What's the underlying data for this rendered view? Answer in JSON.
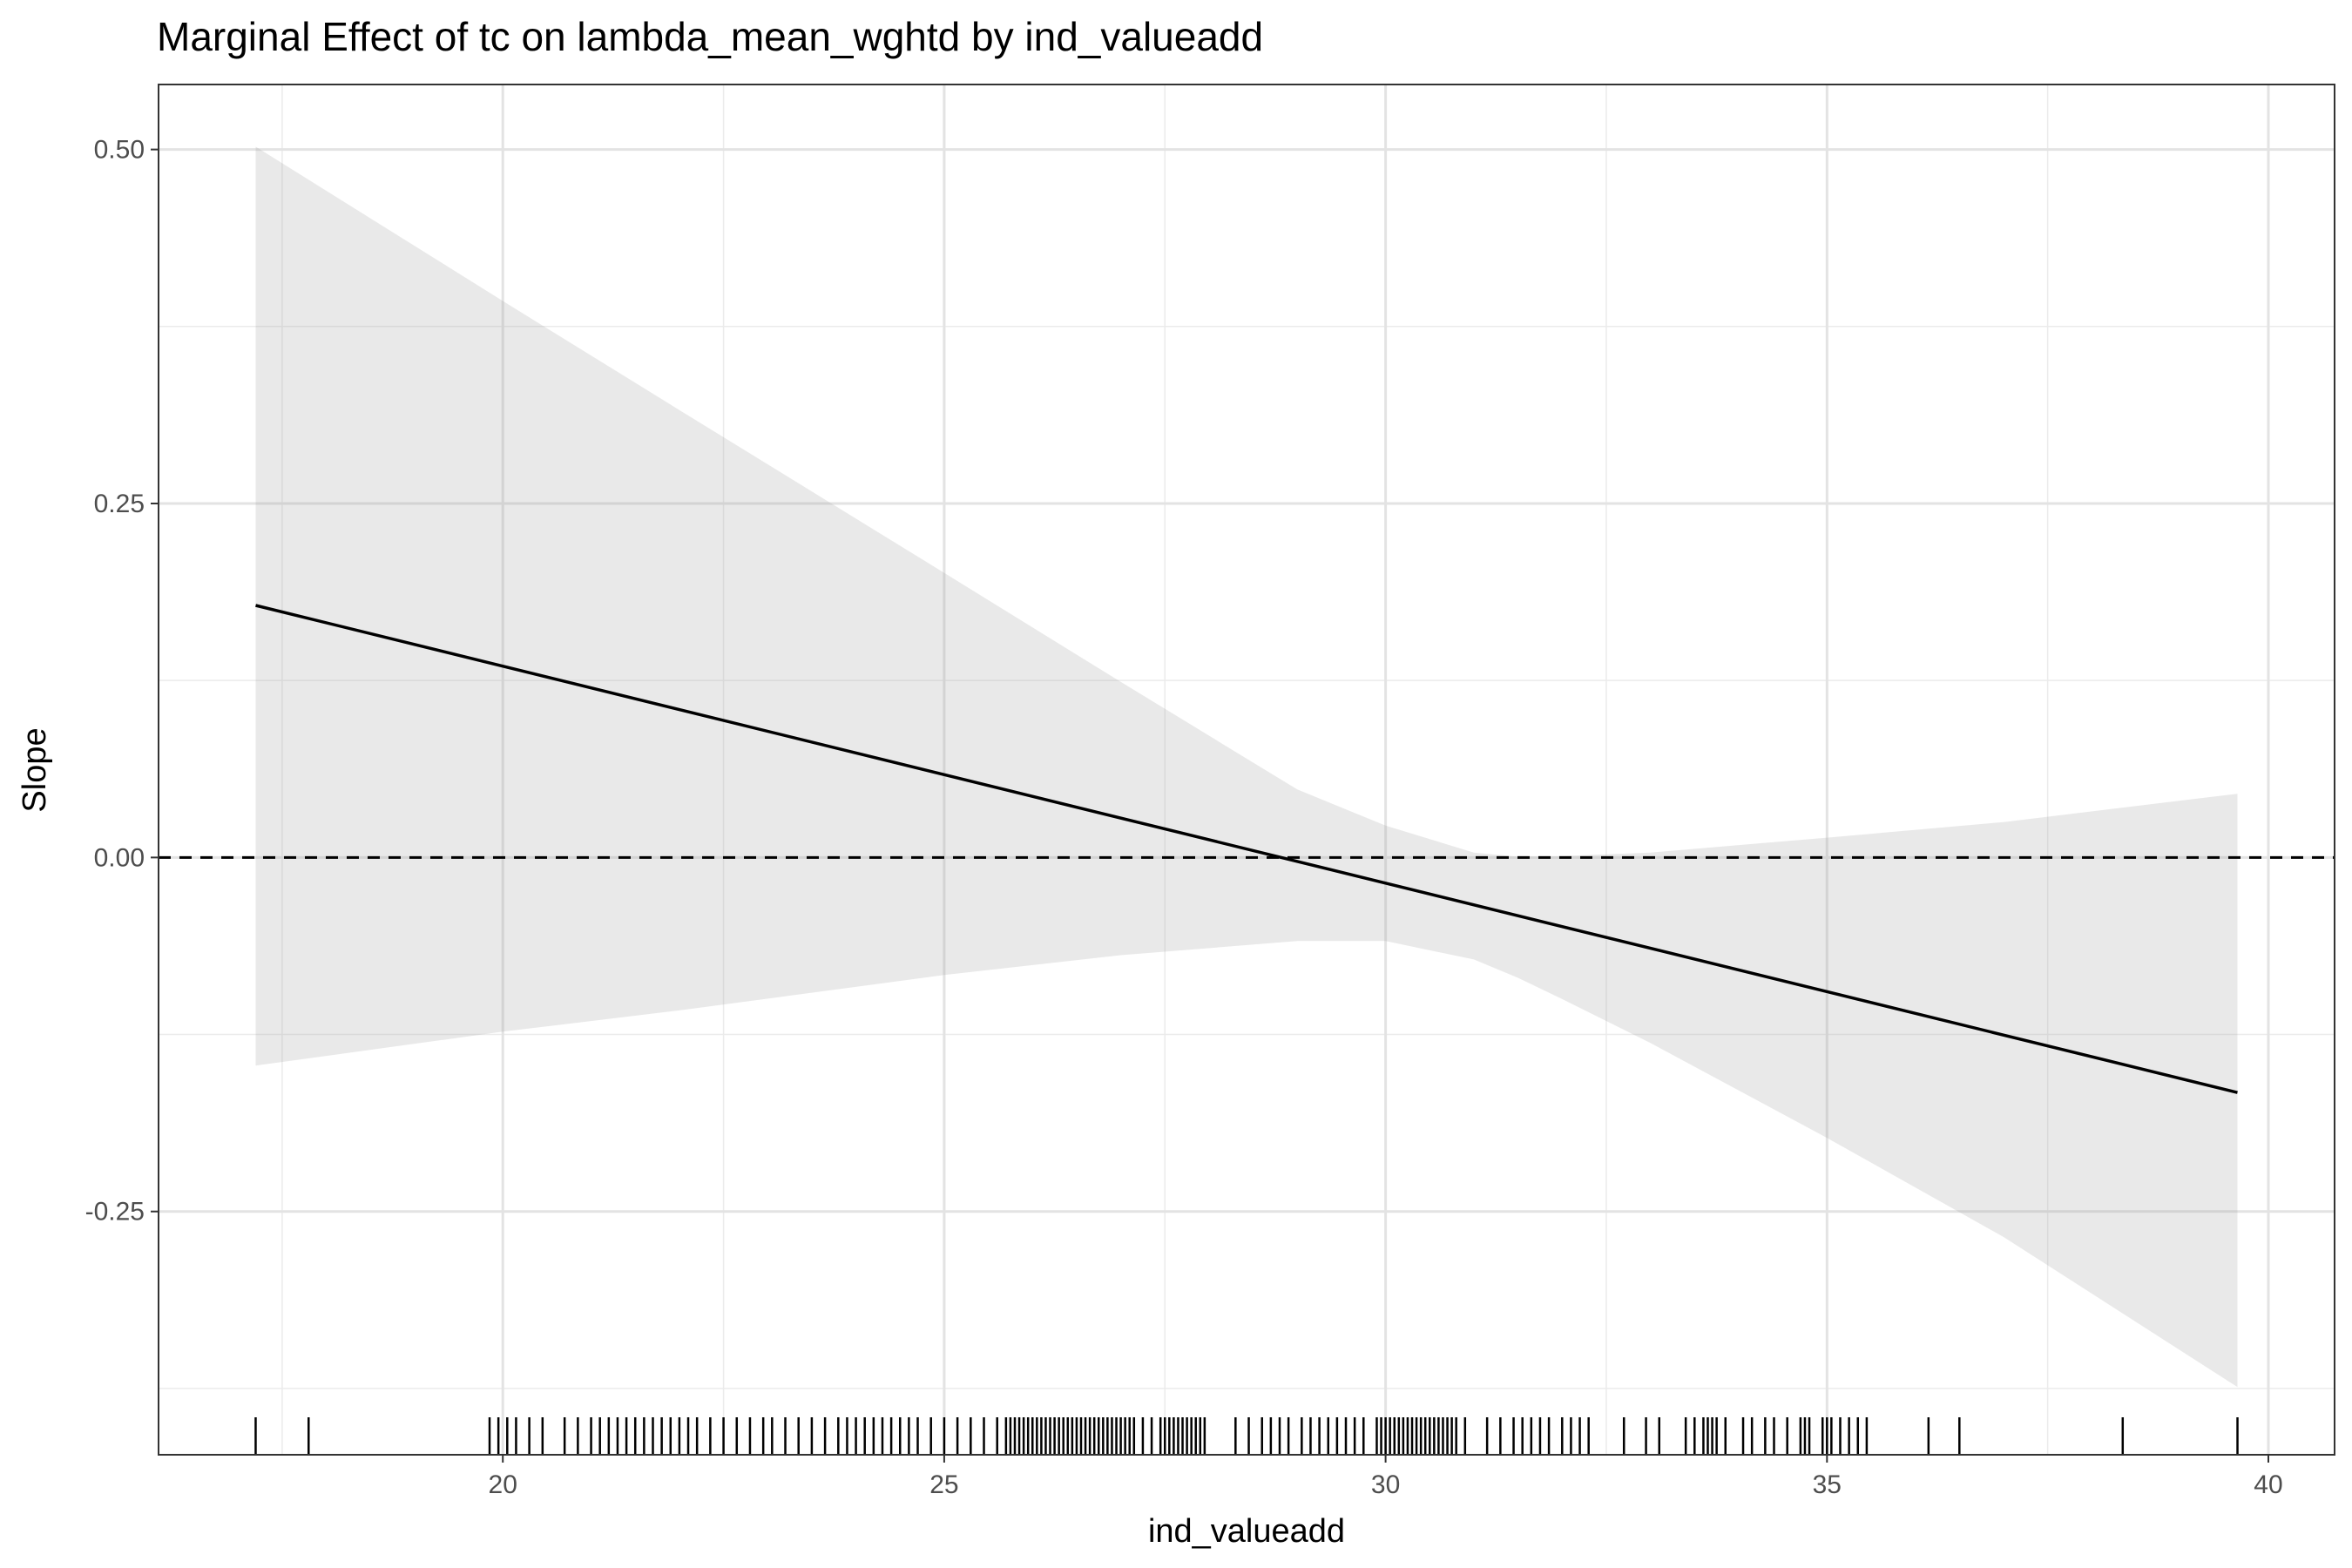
{
  "chart_data": {
    "type": "line",
    "title": "Marginal Effect of tc on lambda_mean_wghtd by ind_valueadd",
    "xlabel": "ind_valueadd",
    "ylabel": "Slope",
    "xlim": [
      16.1,
      40.75
    ],
    "ylim": [
      -0.4218,
      0.5459
    ],
    "x_ticks": [
      20,
      25,
      30,
      35,
      40
    ],
    "x_tick_labels": [
      "20",
      "25",
      "30",
      "35",
      "40"
    ],
    "y_ticks": [
      -0.25,
      0,
      0.25,
      0.5
    ],
    "y_tick_labels": [
      "-0.25",
      "0.00",
      "0.25",
      "0.50"
    ],
    "grid": true,
    "legend": "none",
    "reference_line": {
      "y": 0,
      "style": "dashed"
    },
    "series": [
      {
        "type": "line",
        "x": [
          17.2,
          39.65
        ],
        "y": [
          0.178,
          -0.166
        ]
      },
      {
        "type": "ribbon",
        "x": [
          17.2,
          20,
          22,
          25,
          27,
          29,
          30,
          31,
          31.5,
          32,
          33,
          35,
          37,
          39.65
        ],
        "upper": [
          0.502,
          0.393,
          0.316,
          0.201,
          0.124,
          0.048,
          0.0225,
          0.0035,
          0.0005,
          0.001,
          0.0035,
          0.014,
          0.025,
          0.045
        ],
        "lower": [
          -0.147,
          -0.123,
          -0.108,
          -0.083,
          -0.069,
          -0.059,
          -0.059,
          -0.072,
          -0.085,
          -0.1,
          -0.131,
          -0.198,
          -0.268,
          -0.374
        ]
      }
    ],
    "rug": [
      17.2,
      17.8,
      19.85,
      19.95,
      20.05,
      20.15,
      20.3,
      20.45,
      20.7,
      20.85,
      21.0,
      21.1,
      21.2,
      21.3,
      21.4,
      21.5,
      21.6,
      21.7,
      21.8,
      21.9,
      22.0,
      22.1,
      22.2,
      22.35,
      22.5,
      22.65,
      22.8,
      22.95,
      23.05,
      23.2,
      23.35,
      23.5,
      23.65,
      23.8,
      23.9,
      24.0,
      24.1,
      24.2,
      24.3,
      24.4,
      24.5,
      24.6,
      24.7,
      24.85,
      25.0,
      25.15,
      25.3,
      25.45,
      25.6,
      25.7,
      25.75,
      25.8,
      25.85,
      25.9,
      25.95,
      26.0,
      26.05,
      26.1,
      26.15,
      26.2,
      26.25,
      26.3,
      26.35,
      26.4,
      26.45,
      26.5,
      26.55,
      26.6,
      26.65,
      26.7,
      26.75,
      26.8,
      26.85,
      26.9,
      26.95,
      27.0,
      27.05,
      27.1,
      27.15,
      27.25,
      27.35,
      27.45,
      27.5,
      27.55,
      27.6,
      27.65,
      27.7,
      27.75,
      27.8,
      27.85,
      27.9,
      27.95,
      28.3,
      28.45,
      28.6,
      28.7,
      28.8,
      28.9,
      29.05,
      29.15,
      29.25,
      29.35,
      29.45,
      29.55,
      29.65,
      29.75,
      29.9,
      29.95,
      30.0,
      30.05,
      30.1,
      30.15,
      30.2,
      30.25,
      30.3,
      30.35,
      30.4,
      30.45,
      30.5,
      30.55,
      30.6,
      30.65,
      30.7,
      30.75,
      30.8,
      30.9,
      31.15,
      31.3,
      31.45,
      31.55,
      31.65,
      31.75,
      31.85,
      32.0,
      32.1,
      32.2,
      32.3,
      32.7,
      32.95,
      33.1,
      33.4,
      33.5,
      33.6,
      33.65,
      33.7,
      33.75,
      33.85,
      34.05,
      34.15,
      34.3,
      34.4,
      34.55,
      34.7,
      34.75,
      34.8,
      34.95,
      35.0,
      35.05,
      35.15,
      35.25,
      35.35,
      35.45,
      36.15,
      36.5,
      38.35,
      39.65
    ]
  }
}
